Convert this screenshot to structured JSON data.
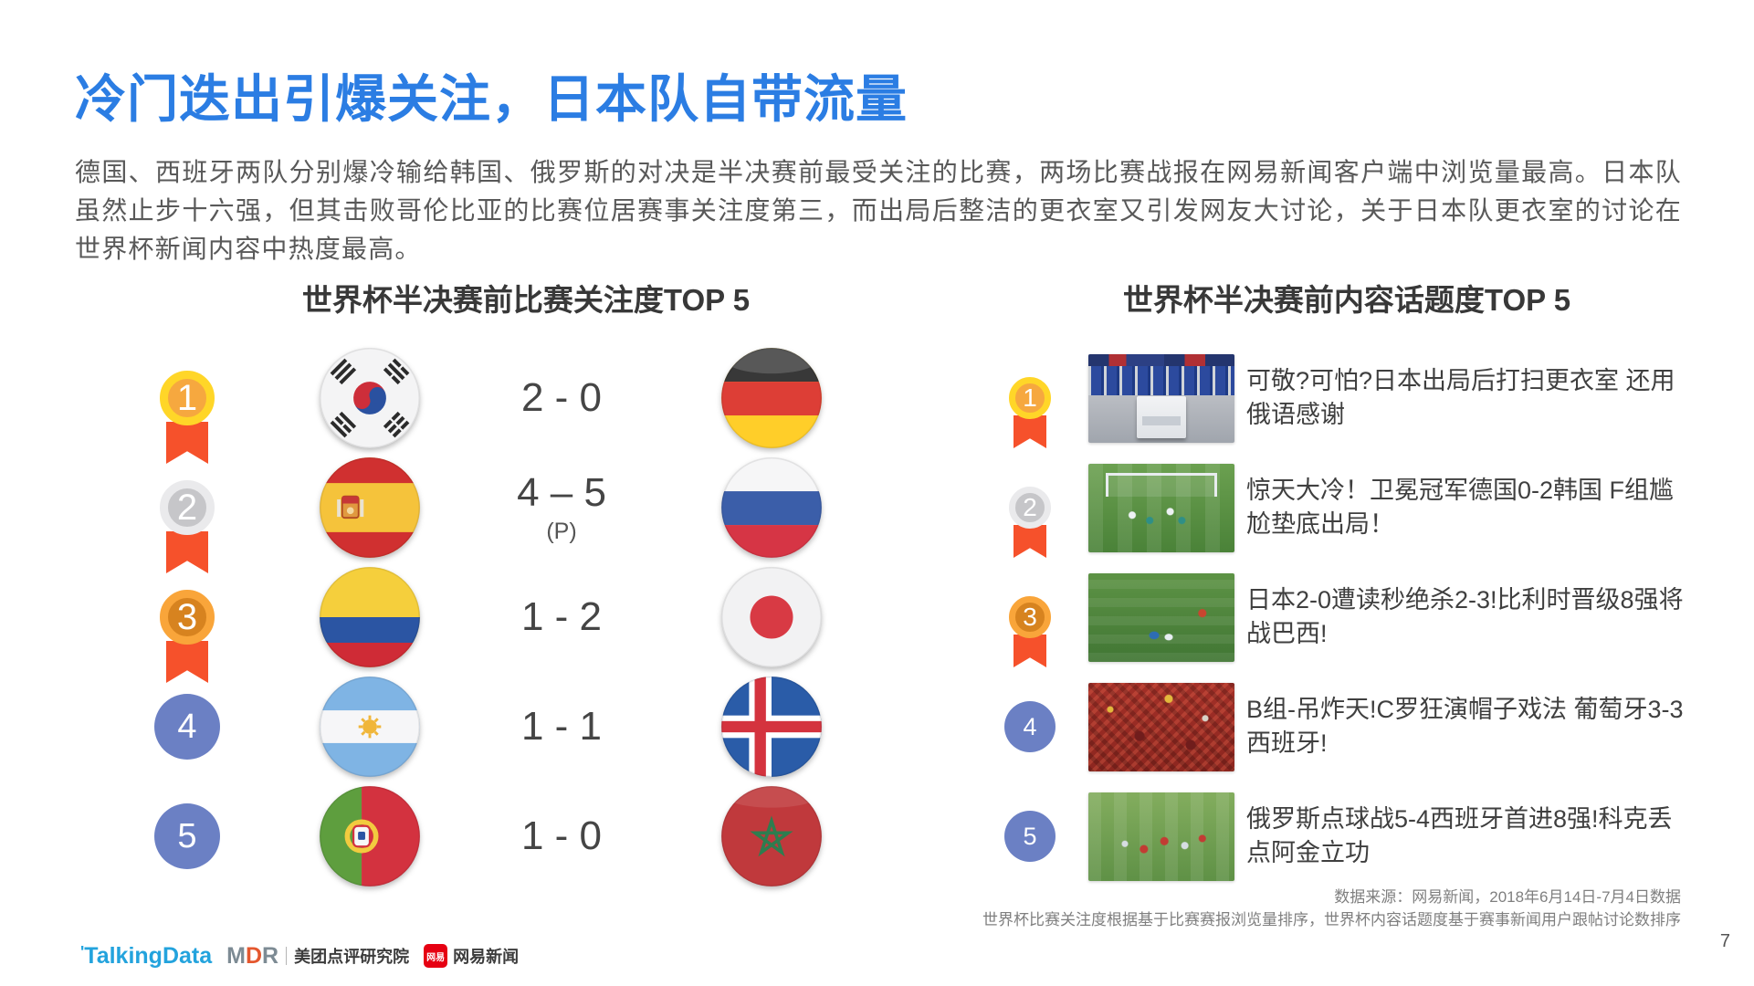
{
  "slide": {
    "title": "冷门迭出引爆关注，日本队自带流量",
    "body": "德国、西班牙两队分别爆冷输给韩国、俄罗斯的对决是半决赛前最受关注的比赛，两场比赛战报在网易新闻客户端中浏览量最高。日本队虽然止步十六强，但其击败哥伦比亚的比赛位居赛事关注度第三，而出局后整洁的更衣室又引发网友大讨论，关于日本队更衣室的讨论在世界杯新闻内容中热度最高。",
    "page_number": "7"
  },
  "match_ranking": {
    "header": "世界杯半决赛前比赛关注度TOP 5",
    "rows": [
      {
        "rank": "1",
        "medal": "gold",
        "home_flag_icon": "flag-south-korea-icon",
        "score": "2 - 0",
        "score_note": "",
        "away_flag_icon": "flag-germany-icon"
      },
      {
        "rank": "2",
        "medal": "silver",
        "home_flag_icon": "flag-spain-icon",
        "score": "4 – 5",
        "score_note": "(P)",
        "away_flag_icon": "flag-russia-icon"
      },
      {
        "rank": "3",
        "medal": "bronze",
        "home_flag_icon": "flag-colombia-icon",
        "score": "1 - 2",
        "score_note": "",
        "away_flag_icon": "flag-japan-icon"
      },
      {
        "rank": "4",
        "medal": "blue",
        "home_flag_icon": "flag-argentina-icon",
        "score": "1 - 1",
        "score_note": "",
        "away_flag_icon": "flag-iceland-icon"
      },
      {
        "rank": "5",
        "medal": "blue",
        "home_flag_icon": "flag-portugal-icon",
        "score": "1 - 0",
        "score_note": "",
        "away_flag_icon": "flag-morocco-icon"
      }
    ]
  },
  "topic_ranking": {
    "header": "世界杯半决赛前内容话题度TOP 5",
    "rows": [
      {
        "rank": "1",
        "medal": "gold",
        "thumb_icon": "locker-room-photo-icon",
        "headline": "可敬?可怕?日本出局后打扫更衣室 还用俄语感谢"
      },
      {
        "rank": "2",
        "medal": "silver",
        "thumb_icon": "goal-scramble-photo-icon",
        "headline": "惊天大冷！卫冕冠军德国0-2韩国 F组尴尬垫底出局！"
      },
      {
        "rank": "3",
        "medal": "bronze",
        "thumb_icon": "player-down-photo-icon",
        "headline": "日本2-0遭读秒绝杀2-3!比利时晋级8强将战巴西!"
      },
      {
        "rank": "4",
        "medal": "blue",
        "thumb_icon": "red-fans-photo-icon",
        "headline": "B组-吊炸天!C罗狂演帽子戏法 葡萄牙3-3西班牙!"
      },
      {
        "rank": "5",
        "medal": "blue",
        "thumb_icon": "team-celebration-photo-icon",
        "headline": "俄罗斯点球战5-4西班牙首进8强!科克丢点阿金立功"
      }
    ]
  },
  "footer": {
    "source_line1": "数据来源：网易新闻，2018年6月14日-7月4日数据",
    "source_line2": "世界杯比赛关注度根据基于比赛赛报浏览量排序，世界杯内容话题度基于赛事新闻用户跟帖讨论数排序",
    "talkingdata_logo": "TalkingData",
    "mdr_logo_m": "M",
    "mdr_logo_d": "D",
    "mdr_logo_r": "R",
    "meituan_label": "美团点评研究院",
    "netease_icon_text": "网易",
    "netease_label": "网易新闻"
  },
  "colors": {
    "title_blue": "#2b7de3",
    "medal_gold_ring": "#ffd628",
    "medal_gold_fill": "#f6a83f",
    "medal_silver_ring": "#eaeaec",
    "medal_silver_fill": "#c6c6c9",
    "medal_bronze_ring": "#f9a53a",
    "medal_bronze_fill": "#d7831f",
    "medal_blue_fill": "#6b80c4",
    "ribbon_red": "#f6512b"
  }
}
